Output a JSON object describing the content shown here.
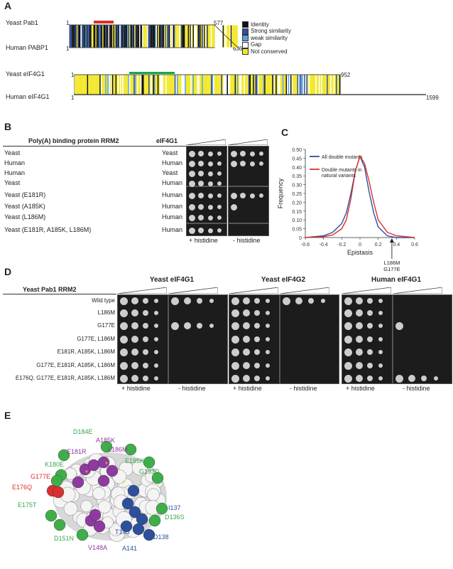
{
  "panel_a": {
    "letter": "A",
    "rows": [
      {
        "label": "Yeast Pab1",
        "start": "1",
        "end": "577"
      },
      {
        "label": "Human PABP1",
        "start": "1",
        "end": "636"
      },
      {
        "label": "Yeast eIF4G1",
        "start": "1",
        "end": "952"
      },
      {
        "label": "Human eIF4G1",
        "start": "1",
        "end": "1599"
      }
    ],
    "legend": [
      {
        "label": "Identity",
        "color": "#111111"
      },
      {
        "label": "Strong similarity",
        "color": "#2f4e9e"
      },
      {
        "label": "weak similarity",
        "color": "#5aa0e0"
      },
      {
        "label": "Gap",
        "color": "#ffffff"
      },
      {
        "label": "Not conserved",
        "color": "#f2e82a"
      }
    ],
    "colors": {
      "red_bar": "#d9302c",
      "green_bar": "#1aa64a"
    }
  },
  "panel_b": {
    "letter": "B",
    "col1_header": "Poly(A) binding protein RRM2",
    "col2_header": "eIF4G1",
    "rows": [
      {
        "pab": "Yeast",
        "eif": "Yeast",
        "plus": 4,
        "minus": 4
      },
      {
        "pab": "Human",
        "eif": "Human",
        "plus": 4,
        "minus": 4
      },
      {
        "pab": "Human",
        "eif": "Yeast",
        "plus": 4,
        "minus": 0
      },
      {
        "pab": "Yeast",
        "eif": "Human",
        "plus": 4,
        "minus": 0
      },
      {
        "pab": "Yeast (E181R)",
        "eif": "Human",
        "plus": 4,
        "minus": 4
      },
      {
        "pab": "Yeast (A185K)",
        "eif": "Human",
        "plus": 4,
        "minus": 1
      },
      {
        "pab": "Yeast (L186M)",
        "eif": "Human",
        "plus": 4,
        "minus": 0
      },
      {
        "pab": "Yeast (E181R, A185K, L186M)",
        "eif": "Human",
        "plus": 4,
        "minus": 0
      }
    ],
    "plus_label": "+ histidine",
    "minus_label": "- histidine"
  },
  "panel_c": {
    "letter": "C",
    "annotation": [
      "L186M",
      "G177E"
    ]
  },
  "chart_data": {
    "type": "line",
    "title": "",
    "xlabel": "Epistasis",
    "ylabel": "Frequency",
    "xlim": [
      -0.6,
      0.6
    ],
    "ylim": [
      0,
      0.5
    ],
    "xticks": [
      "-0.6",
      "-0.4",
      "-0.2",
      "0",
      "0.2",
      "0.4",
      "0.6"
    ],
    "yticks": [
      "0",
      "0.05",
      "0.10",
      "0.15",
      "0.20",
      "0.25",
      "0.30",
      "0.35",
      "0.40",
      "0.45",
      "0.50"
    ],
    "legend_position": "top-right",
    "series": [
      {
        "name": "All double mutants",
        "color": "#2e4f9c",
        "x": [
          -0.6,
          -0.4,
          -0.3,
          -0.2,
          -0.15,
          -0.1,
          -0.05,
          0,
          0.05,
          0.1,
          0.15,
          0.2,
          0.3,
          0.4,
          0.6
        ],
        "y": [
          0.0,
          0.01,
          0.03,
          0.08,
          0.14,
          0.25,
          0.38,
          0.46,
          0.4,
          0.26,
          0.14,
          0.06,
          0.01,
          0.0,
          0.0
        ]
      },
      {
        "name": "Double mutants in natural variants",
        "color": "#d9302c",
        "x": [
          -0.6,
          -0.4,
          -0.3,
          -0.2,
          -0.15,
          -0.1,
          -0.05,
          0,
          0.05,
          0.1,
          0.15,
          0.2,
          0.3,
          0.4,
          0.6
        ],
        "y": [
          0.0,
          0.005,
          0.015,
          0.05,
          0.1,
          0.22,
          0.38,
          0.46,
          0.42,
          0.32,
          0.2,
          0.1,
          0.03,
          0.01,
          0.0
        ]
      }
    ]
  },
  "panel_d": {
    "letter": "D",
    "row_header": "Yeast Pab1 RRM2",
    "rows": [
      "Wild type",
      "L186M",
      "G177E",
      "G177E, L186M",
      "E181R, A185K, L186M",
      "G177E, E181R, A185K, L186M",
      "E176Q, G177E, E181R, A185K, L186M"
    ],
    "groups": [
      {
        "title": "Yeast eIF4G1",
        "minus_growth": [
          4,
          0,
          4,
          0,
          0,
          0,
          0
        ]
      },
      {
        "title": "Yeast eIF4G2",
        "minus_growth": [
          4,
          0,
          0,
          0,
          0,
          0,
          0
        ]
      },
      {
        "title": "Human eIF4G1",
        "minus_growth": [
          0,
          0,
          1,
          0,
          0,
          0,
          4
        ]
      }
    ],
    "plus_label": "+ histidine",
    "minus_label": "- histidine"
  },
  "panel_e": {
    "letter": "E",
    "labels": [
      {
        "text": "D184E",
        "color": "#3aa64a"
      },
      {
        "text": "A185K",
        "color": "#8e3aa0"
      },
      {
        "text": "L186M",
        "color": "#8e3aa0"
      },
      {
        "text": "E181R",
        "color": "#8e3aa0"
      },
      {
        "text": "E195K",
        "color": "#3aa64a"
      },
      {
        "text": "K180E",
        "color": "#3aa64a"
      },
      {
        "text": "G193D",
        "color": "#3aa64a"
      },
      {
        "text": "G177E",
        "color": "#d9302c"
      },
      {
        "text": "E176Q",
        "color": "#d9302c"
      },
      {
        "text": "E175T",
        "color": "#3aa64a"
      },
      {
        "text": "I137",
        "color": "#2e4f9c"
      },
      {
        "text": "D136S",
        "color": "#3aa64a"
      },
      {
        "text": "D151N",
        "color": "#3aa64a"
      },
      {
        "text": "T145",
        "color": "#2e4f9c"
      },
      {
        "text": "D138",
        "color": "#2e4f9c"
      },
      {
        "text": "V148A",
        "color": "#8e3aa0"
      },
      {
        "text": "A141",
        "color": "#2e4f9c"
      }
    ]
  }
}
